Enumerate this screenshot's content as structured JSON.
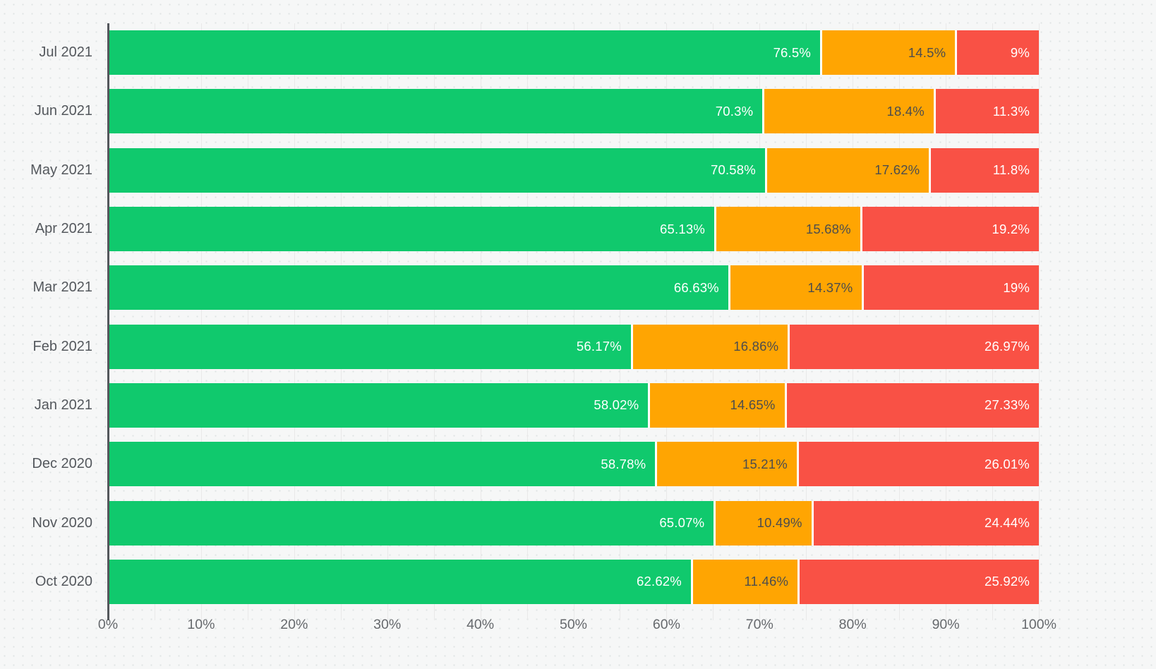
{
  "chart_data": {
    "type": "bar",
    "orientation": "horizontal",
    "stacked_percent": true,
    "title": "",
    "xlabel": "",
    "ylabel": "",
    "legend": "none",
    "grid": true,
    "categories": [
      "Jul 2021",
      "Jun 2021",
      "May 2021",
      "Apr 2021",
      "Mar 2021",
      "Feb 2021",
      "Jan 2021",
      "Dec 2020",
      "Nov 2020",
      "Oct 2020"
    ],
    "series": [
      {
        "name": "Green",
        "color": "#10c96d",
        "label_color": "#ffffff",
        "values": [
          76.5,
          70.3,
          70.58,
          65.13,
          66.63,
          56.17,
          58.02,
          58.78,
          65.07,
          62.62
        ],
        "labels": [
          "76.5%",
          "70.3%",
          "70.58%",
          "65.13%",
          "66.63%",
          "56.17%",
          "58.02%",
          "58.78%",
          "65.07%",
          "62.62%"
        ]
      },
      {
        "name": "Orange",
        "color": "#ffa502",
        "label_color": "#4d4d4d",
        "values": [
          14.5,
          18.4,
          17.62,
          15.68,
          14.37,
          16.86,
          14.65,
          15.21,
          10.49,
          11.46
        ],
        "labels": [
          "14.5%",
          "18.4%",
          "17.62%",
          "15.68%",
          "14.37%",
          "16.86%",
          "14.65%",
          "15.21%",
          "10.49%",
          "11.46%"
        ]
      },
      {
        "name": "Red",
        "color": "#f95145",
        "label_color": "#ffffff",
        "values": [
          9,
          11.3,
          11.8,
          19.2,
          19,
          26.97,
          27.33,
          26.01,
          24.44,
          25.92
        ],
        "labels": [
          "9%",
          "11.3%",
          "11.8%",
          "19.2%",
          "19%",
          "26.97%",
          "27.33%",
          "26.01%",
          "24.44%",
          "25.92%"
        ]
      }
    ],
    "x_axis": {
      "range": [
        0,
        100
      ],
      "tick_labels": [
        "0%",
        "10%",
        "20%",
        "30%",
        "40%",
        "50%",
        "60%",
        "70%",
        "80%",
        "90%",
        "100%"
      ],
      "major_tick_step": 10,
      "minor_tick_step": 5
    }
  },
  "colors": {
    "background": "#f6f7f7",
    "gridline": "#e9e9e9",
    "axis_line": "#54575c",
    "category_label": "#54585d",
    "tick_label": "#66696d",
    "segment_separator": "#ffffff"
  }
}
